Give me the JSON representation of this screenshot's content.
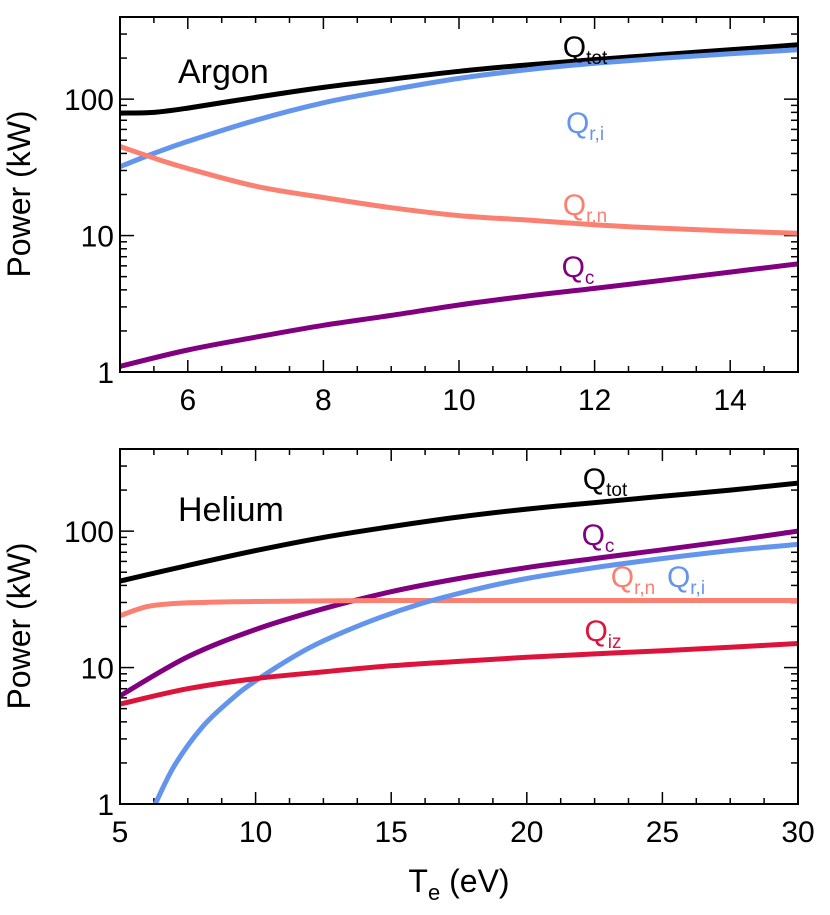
{
  "chart_data": [
    {
      "type": "line",
      "title": "Argon",
      "ylabel": "Power (kW)",
      "xlabel": "",
      "xlim": [
        5,
        15
      ],
      "ylim": [
        1,
        400
      ],
      "yscale": "log",
      "xticks": [
        6,
        8,
        10,
        12,
        14
      ],
      "yticks": [
        1,
        10,
        100
      ],
      "series": [
        {
          "name": "Q_tot",
          "label_main": "Q",
          "label_sub": "tot",
          "color": "#000000",
          "x": [
            5,
            5.5,
            6,
            7,
            8,
            9,
            10,
            11,
            12,
            13,
            14,
            15
          ],
          "y": [
            79,
            80,
            86,
            103,
            122,
            140,
            160,
            178,
            195,
            212,
            230,
            250
          ]
        },
        {
          "name": "Q_r,i",
          "label_main": "Q",
          "label_sub": "r,i",
          "color": "#6495ED",
          "x": [
            5,
            5.5,
            6,
            7,
            8,
            9,
            10,
            11,
            12,
            13,
            14,
            15
          ],
          "y": [
            32,
            40,
            49,
            70,
            94,
            117,
            142,
            164,
            183,
            200,
            215,
            230
          ]
        },
        {
          "name": "Q_r,n",
          "label_main": "Q",
          "label_sub": "r,n",
          "color": "#FA8072",
          "x": [
            5,
            5.5,
            6,
            7,
            8,
            9,
            10,
            11,
            12,
            13,
            14,
            15
          ],
          "y": [
            45,
            37,
            31,
            23,
            19,
            16,
            14,
            13,
            12,
            11.3,
            10.8,
            10.4
          ]
        },
        {
          "name": "Q_c",
          "label_main": "Q",
          "label_sub": "c",
          "color": "#800080",
          "x": [
            5,
            6,
            7,
            8,
            9,
            10,
            11,
            12,
            13,
            14,
            15
          ],
          "y": [
            1.1,
            1.45,
            1.8,
            2.2,
            2.6,
            3.1,
            3.6,
            4.1,
            4.7,
            5.4,
            6.2
          ]
        }
      ]
    },
    {
      "type": "line",
      "title": "Helium",
      "ylabel": "Power (kW)",
      "xlabel": "T",
      "xlabel_sub": "e",
      "xlabel_unit": " (eV)",
      "xlim": [
        5,
        30
      ],
      "ylim": [
        1,
        400
      ],
      "yscale": "log",
      "xticks": [
        5,
        10,
        15,
        20,
        25,
        30
      ],
      "yticks": [
        1,
        10,
        100
      ],
      "series": [
        {
          "name": "Q_tot",
          "label_main": "Q",
          "label_sub": "tot",
          "color": "#000000",
          "x": [
            5,
            7.5,
            10,
            12.5,
            15,
            17.5,
            20,
            22.5,
            25,
            27.5,
            30
          ],
          "y": [
            43,
            56,
            72,
            90,
            108,
            127,
            145,
            162,
            180,
            200,
            225
          ]
        },
        {
          "name": "Q_c",
          "label_main": "Q",
          "label_sub": "c",
          "color": "#800080",
          "x": [
            5,
            7.5,
            10,
            12.5,
            15,
            17.5,
            20,
            22.5,
            25,
            27.5,
            30
          ],
          "y": [
            6.2,
            12,
            19,
            27,
            36,
            45,
            54,
            63,
            73,
            85,
            100
          ]
        },
        {
          "name": "Q_r,n",
          "label_main": "Q",
          "label_sub": "r,n",
          "color": "#FA8072",
          "x": [
            5,
            6,
            7,
            8,
            10,
            15,
            20,
            25,
            30
          ],
          "y": [
            24,
            28,
            29.5,
            30,
            30.5,
            31,
            31,
            31,
            31
          ]
        },
        {
          "name": "Q_r,i",
          "label_main": "Q",
          "label_sub": "r,i",
          "color": "#6495ED",
          "x": [
            6.3,
            7,
            8,
            9,
            10,
            12,
            14,
            16,
            18,
            20,
            22.5,
            25,
            27.5,
            30
          ],
          "y": [
            1,
            1.9,
            3.6,
            5.6,
            8,
            14,
            21,
            29,
            37,
            45,
            54,
            63,
            72,
            80
          ]
        },
        {
          "name": "Q_iz",
          "label_main": "Q",
          "label_sub": "iz",
          "color": "#DC143C",
          "x": [
            5,
            7.5,
            10,
            12.5,
            15,
            17.5,
            20,
            22.5,
            25,
            27.5,
            30
          ],
          "y": [
            5.4,
            7,
            8.3,
            9.3,
            10.3,
            11.1,
            11.9,
            12.6,
            13.3,
            14.1,
            15
          ]
        }
      ]
    }
  ]
}
